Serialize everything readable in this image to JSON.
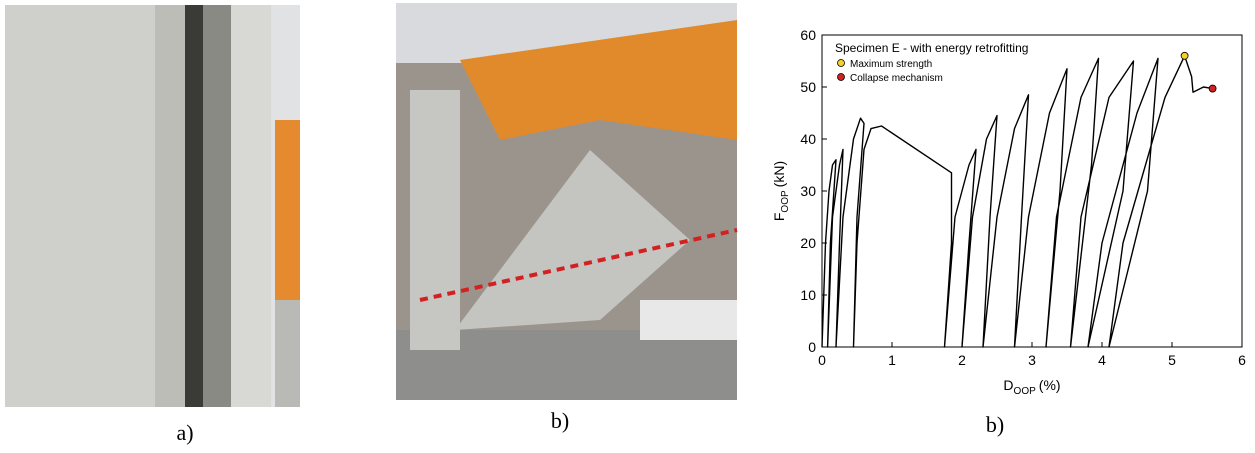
{
  "figure": {
    "panels": [
      {
        "label": "a)"
      },
      {
        "label": "b)"
      }
    ]
  },
  "chart_data": {
    "type": "line",
    "title": "Specimen E - with energy retrofitting",
    "xlabel": {
      "main": "D",
      "sub": "OOP",
      "unit": "(%)"
    },
    "ylabel": {
      "main": "F",
      "sub": "OOP",
      "unit": "(kN)"
    },
    "xlim": [
      0,
      6
    ],
    "ylim": [
      0,
      60
    ],
    "xticks": [
      0,
      1,
      2,
      3,
      4,
      5,
      6
    ],
    "yticks": [
      0,
      10,
      20,
      30,
      40,
      50,
      60
    ],
    "series": [
      {
        "color": "#000000",
        "x": [
          0,
          0.05,
          0.1,
          0.15,
          0.2,
          0.12,
          0.08,
          0.15,
          0.25,
          0.3,
          0.25,
          0.2,
          0.3,
          0.45,
          0.55,
          0.6,
          0.5,
          0.45,
          0.5,
          0.6,
          0.7,
          0.85,
          1.85,
          1.85,
          1.75,
          1.9,
          2.1,
          2.2,
          2.1,
          2.0,
          2.15,
          2.35,
          2.5,
          2.4,
          2.3,
          2.5,
          2.75,
          2.95,
          2.85,
          2.75,
          2.95,
          3.25,
          3.5,
          3.4,
          3.2,
          3.35,
          3.7,
          3.95,
          3.85,
          3.55,
          3.7,
          4.1,
          4.45,
          4.3,
          3.8,
          4.0,
          4.5,
          4.8,
          4.65,
          4.1,
          4.3,
          4.9,
          5.18,
          5.28,
          5.3,
          5.45,
          5.58
        ],
        "values": [
          0,
          20,
          30,
          35,
          36,
          20,
          0,
          25,
          35,
          38,
          20,
          0,
          25,
          40,
          44,
          43,
          25,
          0,
          20,
          38,
          42,
          42.5,
          33.5,
          20,
          0,
          25,
          35,
          38,
          20,
          0,
          25,
          40,
          44.5,
          25,
          0,
          25,
          42,
          48.5,
          25,
          0,
          25,
          45,
          53.5,
          30,
          0,
          25,
          48,
          55.5,
          35,
          0,
          25,
          48,
          55,
          30,
          0,
          20,
          45,
          55.5,
          30,
          0,
          20,
          48,
          56,
          52,
          49,
          50,
          49.7
        ]
      }
    ],
    "markers": [
      {
        "name": "Maximum strength",
        "color": "#f5d027",
        "x": 5.18,
        "y": 56
      },
      {
        "name": "Collapse mechanism",
        "color": "#d32020",
        "x": 5.58,
        "y": 49.7
      }
    ],
    "label": "b)"
  }
}
